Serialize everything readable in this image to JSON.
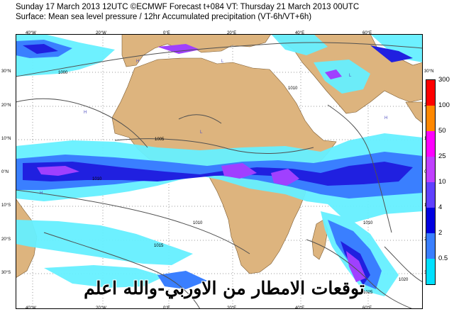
{
  "header": {
    "line1": "Sunday 17 March 2013 12UTC ©ECMWF Forecast t+084 VT: Thursday 21 March 2013 00UTC",
    "line2": "Surface: Mean sea level pressure / 12hr Accumulated precipitation (VT-6h/VT+6h)"
  },
  "map": {
    "lon_labels_top": [
      "40°W",
      "20°W",
      "0°E",
      "20°E",
      "40°E",
      "60°E"
    ],
    "lon_labels_bottom": [
      "40°W",
      "20°W",
      "0°E",
      "20°E",
      "40°E",
      "60°E"
    ],
    "lat_labels_left": [
      "30°N",
      "20°N",
      "10°N",
      "0°N",
      "10°S",
      "20°S",
      "30°S"
    ],
    "lat_labels_right": [
      "30°N",
      "20°N",
      "10°N",
      "0°N",
      "10°S",
      "20°S",
      "30°S"
    ],
    "isobar_labels": [
      "1000",
      "1005",
      "1010",
      "1015",
      "1020",
      "1025"
    ],
    "pressure_centres": [
      "H",
      "L"
    ]
  },
  "legend": {
    "unit": "",
    "levels": [
      "300",
      "100",
      "50",
      "25",
      "10",
      "4",
      "2",
      "0.5"
    ],
    "colors": [
      "#ff0000",
      "#ff8800",
      "#ff00ff",
      "#c040ff",
      "#6040ff",
      "#0000e0",
      "#3a7fff",
      "#00e0ff"
    ]
  },
  "watermark": {
    "text": "توقعات الامطار من الاوربي-والله اعلم"
  },
  "colors": {
    "land": "#ddb47e",
    "sea": "#ffffff",
    "precip_light": "#66f0ff",
    "precip_mid": "#3a7fff",
    "precip_heavy": "#2020e0",
    "precip_max": "#a040ff",
    "isobar": "#505050"
  }
}
